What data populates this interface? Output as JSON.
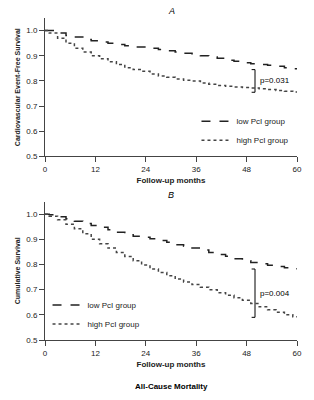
{
  "chart_data": [
    {
      "type": "step",
      "title": "A",
      "x_label": "Follow-up months",
      "y_label": "Cardiovascular Event-Free Survival",
      "x": [
        0,
        1,
        3,
        5,
        7,
        9,
        11,
        13,
        15,
        17,
        19,
        21,
        23,
        25,
        27,
        29,
        31,
        33,
        35,
        37,
        39,
        41,
        43,
        45,
        47,
        49,
        51,
        53,
        55,
        57,
        59,
        60
      ],
      "series": [
        {
          "name": "low PcI group",
          "color": "#222222",
          "line_style": "dashed",
          "values": [
            1.0,
            1.0,
            0.99,
            0.98,
            0.975,
            0.965,
            0.96,
            0.955,
            0.95,
            0.945,
            0.94,
            0.935,
            0.935,
            0.93,
            0.925,
            0.92,
            0.915,
            0.91,
            0.908,
            0.9,
            0.895,
            0.89,
            0.882,
            0.878,
            0.872,
            0.868,
            0.865,
            0.862,
            0.858,
            0.852,
            0.848,
            0.845
          ]
        },
        {
          "name": "high PcI group",
          "color": "#444444",
          "line_style": "dotted",
          "values": [
            1.0,
            0.99,
            0.97,
            0.95,
            0.93,
            0.915,
            0.9,
            0.888,
            0.876,
            0.865,
            0.852,
            0.845,
            0.838,
            0.828,
            0.82,
            0.815,
            0.808,
            0.803,
            0.8,
            0.792,
            0.787,
            0.782,
            0.779,
            0.776,
            0.774,
            0.772,
            0.769,
            0.766,
            0.762,
            0.759,
            0.756,
            0.755
          ]
        }
      ],
      "annotations": [
        {
          "text": "p=0.031",
          "x": 50,
          "y_low": 0.755,
          "y_high": 0.845
        }
      ],
      "xlim": [
        0,
        60
      ],
      "xticks": [
        0,
        12,
        24,
        36,
        48,
        60
      ],
      "ylim": [
        0.5,
        1.05
      ],
      "yticks": [
        0.5,
        0.6,
        0.7,
        0.8,
        0.9,
        {
          "value": 1.0,
          "label": "1.0"
        }
      ],
      "grid": false,
      "legend": "lower right"
    },
    {
      "type": "step",
      "title": "B",
      "subtitle": "All-Cause Mortality",
      "x_label": "Follow-up months",
      "y_label": "Cumulative Survival",
      "x": [
        0,
        1,
        3,
        5,
        7,
        9,
        11,
        13,
        15,
        17,
        19,
        21,
        23,
        25,
        27,
        29,
        31,
        33,
        35,
        37,
        39,
        41,
        43,
        45,
        47,
        49,
        51,
        53,
        55,
        57,
        59,
        60
      ],
      "series": [
        {
          "name": "low PcI group",
          "color": "#222222",
          "line_style": "dashed",
          "values": [
            1.0,
            0.998,
            0.99,
            0.982,
            0.972,
            0.963,
            0.955,
            0.948,
            0.938,
            0.928,
            0.918,
            0.912,
            0.908,
            0.902,
            0.895,
            0.888,
            0.878,
            0.872,
            0.865,
            0.858,
            0.848,
            0.84,
            0.833,
            0.823,
            0.815,
            0.808,
            0.803,
            0.797,
            0.792,
            0.787,
            0.783,
            0.782
          ]
        },
        {
          "name": "high PcI group",
          "color": "#444444",
          "line_style": "dotted",
          "values": [
            1.0,
            0.992,
            0.978,
            0.96,
            0.942,
            0.922,
            0.9,
            0.882,
            0.865,
            0.848,
            0.832,
            0.815,
            0.798,
            0.782,
            0.768,
            0.755,
            0.742,
            0.73,
            0.72,
            0.71,
            0.7,
            0.688,
            0.678,
            0.668,
            0.658,
            0.645,
            0.632,
            0.62,
            0.61,
            0.6,
            0.592,
            0.59
          ]
        }
      ],
      "annotations": [
        {
          "text": "p=0.004",
          "x": 50,
          "y_low": 0.59,
          "y_high": 0.782
        }
      ],
      "xlim": [
        0,
        60
      ],
      "xticks": [
        0,
        12,
        24,
        36,
        48,
        60
      ],
      "ylim": [
        0.5,
        1.05
      ],
      "yticks": [
        0.5,
        0.6,
        0.7,
        0.8,
        0.9,
        {
          "value": 1.0,
          "label": "1.0"
        }
      ],
      "grid": false,
      "legend": "lower left"
    }
  ]
}
